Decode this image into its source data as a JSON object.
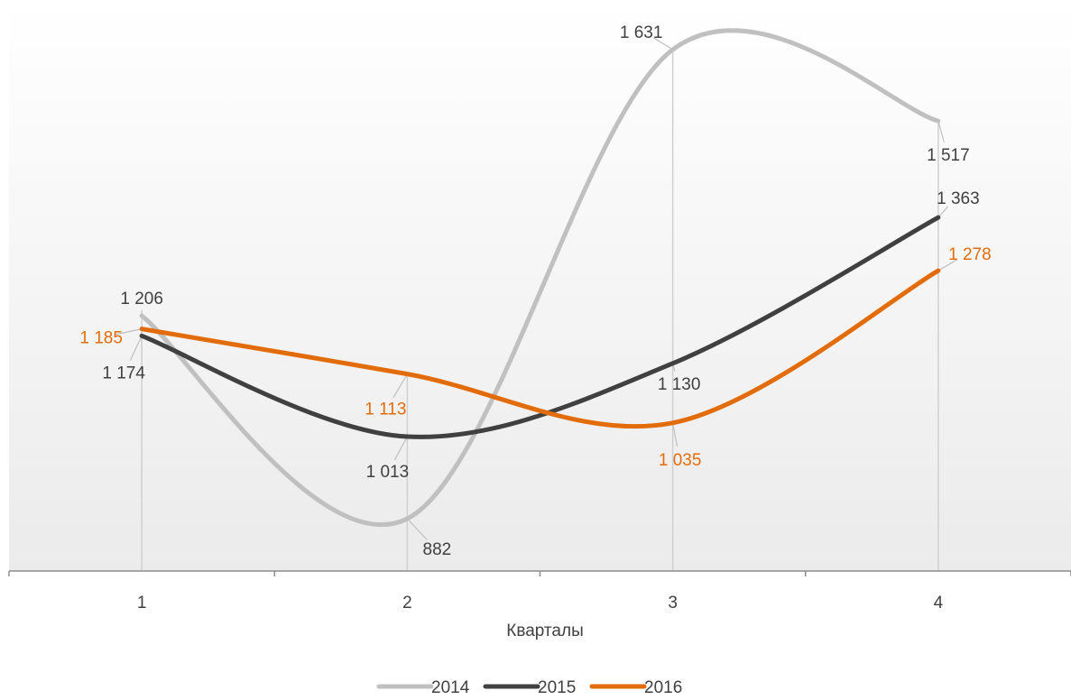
{
  "chart_data": {
    "type": "line",
    "categories": [
      "1",
      "2",
      "3",
      "4"
    ],
    "xlabel": "Кварталы",
    "ylabel": "",
    "ylim": [
      750,
      1700
    ],
    "grid": false,
    "legend_position": "bottom",
    "series": [
      {
        "name": "2014",
        "color": "#c0c0c0",
        "values": [
          1206,
          882,
          1631,
          1517
        ],
        "labels": [
          "1 206",
          "882",
          "1 631",
          "1 517"
        ]
      },
      {
        "name": "2015",
        "color": "#404040",
        "values": [
          1174,
          1013,
          1130,
          1363
        ],
        "labels": [
          "1 174",
          "1 013",
          "1 130",
          "1 363"
        ]
      },
      {
        "name": "2016",
        "color": "#e36c0a",
        "values": [
          1185,
          1113,
          1035,
          1278
        ],
        "labels": [
          "1 185",
          "1 113",
          "1 035",
          "1 278"
        ]
      }
    ]
  }
}
